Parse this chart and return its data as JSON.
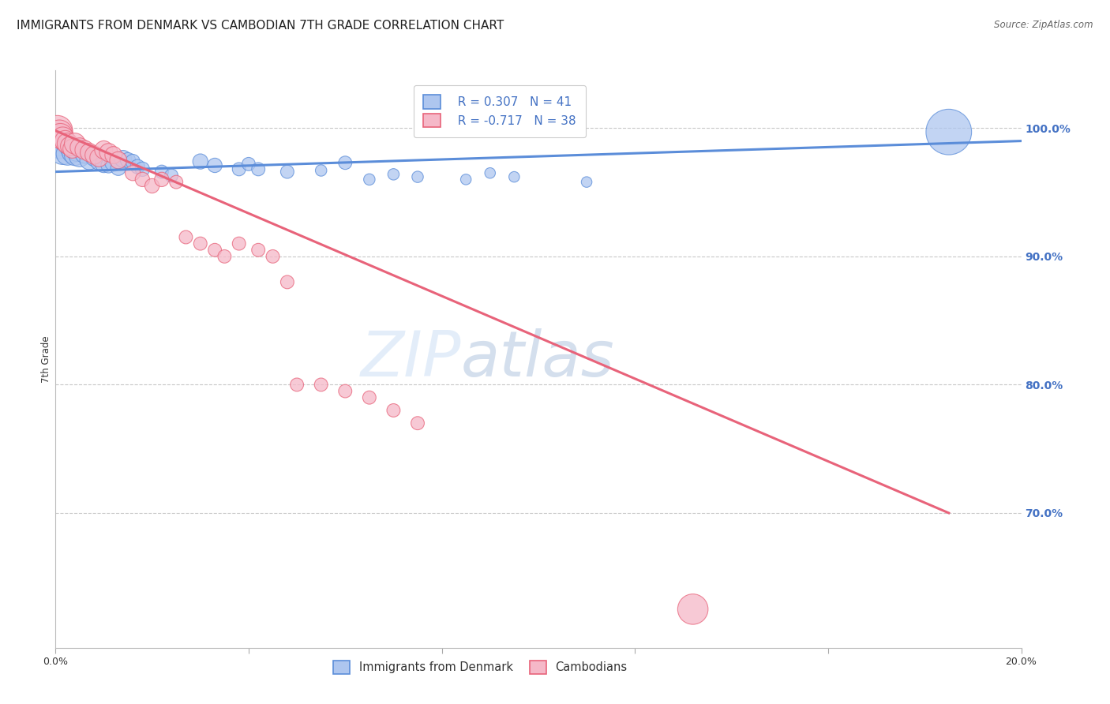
{
  "title": "IMMIGRANTS FROM DENMARK VS CAMBODIAN 7TH GRADE CORRELATION CHART",
  "source": "Source: ZipAtlas.com",
  "ylabel": "7th Grade",
  "yaxis_labels": [
    "100.0%",
    "90.0%",
    "80.0%",
    "70.0%"
  ],
  "yaxis_values": [
    1.0,
    0.9,
    0.8,
    0.7
  ],
  "xlim": [
    0.0,
    0.2
  ],
  "ylim": [
    0.595,
    1.045
  ],
  "legend_r1": "R = 0.307   N = 41",
  "legend_r2": "R = -0.717   N = 38",
  "blue_color": "#5b8dd9",
  "pink_color": "#e8637a",
  "blue_fill": "#aec6ef",
  "pink_fill": "#f5b8c8",
  "watermark_zip": "ZIP",
  "watermark_atlas": "atlas",
  "denmark_points": [
    [
      0.0005,
      0.99
    ],
    [
      0.001,
      0.985
    ],
    [
      0.0015,
      0.982
    ],
    [
      0.002,
      0.988
    ],
    [
      0.0025,
      0.98
    ],
    [
      0.003,
      0.984
    ],
    [
      0.0035,
      0.981
    ],
    [
      0.004,
      0.979
    ],
    [
      0.0045,
      0.983
    ],
    [
      0.005,
      0.978
    ],
    [
      0.006,
      0.98
    ],
    [
      0.007,
      0.975
    ],
    [
      0.008,
      0.977
    ],
    [
      0.009,
      0.974
    ],
    [
      0.01,
      0.972
    ],
    [
      0.011,
      0.971
    ],
    [
      0.012,
      0.973
    ],
    [
      0.013,
      0.969
    ],
    [
      0.014,
      0.976
    ],
    [
      0.015,
      0.975
    ],
    [
      0.016,
      0.974
    ],
    [
      0.017,
      0.97
    ],
    [
      0.018,
      0.968
    ],
    [
      0.022,
      0.966
    ],
    [
      0.024,
      0.963
    ],
    [
      0.03,
      0.974
    ],
    [
      0.033,
      0.971
    ],
    [
      0.038,
      0.968
    ],
    [
      0.04,
      0.972
    ],
    [
      0.042,
      0.968
    ],
    [
      0.048,
      0.966
    ],
    [
      0.055,
      0.967
    ],
    [
      0.06,
      0.973
    ],
    [
      0.065,
      0.96
    ],
    [
      0.07,
      0.964
    ],
    [
      0.075,
      0.962
    ],
    [
      0.085,
      0.96
    ],
    [
      0.09,
      0.965
    ],
    [
      0.095,
      0.962
    ],
    [
      0.11,
      0.958
    ],
    [
      0.185,
      0.997
    ]
  ],
  "denmark_sizes": [
    80,
    60,
    70,
    50,
    60,
    50,
    55,
    55,
    60,
    55,
    50,
    50,
    45,
    45,
    45,
    40,
    45,
    40,
    45,
    40,
    38,
    38,
    38,
    35,
    35,
    40,
    38,
    35,
    35,
    35,
    35,
    30,
    35,
    30,
    30,
    30,
    28,
    28,
    28,
    28,
    120
  ],
  "cambodian_points": [
    [
      0.0004,
      0.998
    ],
    [
      0.0008,
      0.996
    ],
    [
      0.001,
      0.994
    ],
    [
      0.0015,
      0.992
    ],
    [
      0.002,
      0.99
    ],
    [
      0.0025,
      0.988
    ],
    [
      0.003,
      0.986
    ],
    [
      0.0035,
      0.984
    ],
    [
      0.004,
      0.988
    ],
    [
      0.005,
      0.985
    ],
    [
      0.006,
      0.983
    ],
    [
      0.007,
      0.981
    ],
    [
      0.008,
      0.979
    ],
    [
      0.009,
      0.977
    ],
    [
      0.01,
      0.983
    ],
    [
      0.011,
      0.981
    ],
    [
      0.012,
      0.979
    ],
    [
      0.013,
      0.975
    ],
    [
      0.016,
      0.965
    ],
    [
      0.018,
      0.96
    ],
    [
      0.02,
      0.955
    ],
    [
      0.022,
      0.96
    ],
    [
      0.025,
      0.958
    ],
    [
      0.027,
      0.915
    ],
    [
      0.03,
      0.91
    ],
    [
      0.033,
      0.905
    ],
    [
      0.035,
      0.9
    ],
    [
      0.038,
      0.91
    ],
    [
      0.042,
      0.905
    ],
    [
      0.045,
      0.9
    ],
    [
      0.048,
      0.88
    ],
    [
      0.05,
      0.8
    ],
    [
      0.055,
      0.8
    ],
    [
      0.06,
      0.795
    ],
    [
      0.065,
      0.79
    ],
    [
      0.07,
      0.78
    ],
    [
      0.075,
      0.77
    ],
    [
      0.132,
      0.625
    ]
  ],
  "cambodian_sizes": [
    80,
    70,
    65,
    60,
    55,
    55,
    50,
    50,
    55,
    50,
    50,
    48,
    48,
    48,
    48,
    48,
    45,
    45,
    40,
    38,
    38,
    38,
    35,
    35,
    35,
    35,
    35,
    35,
    35,
    35,
    35,
    35,
    35,
    35,
    35,
    35,
    35,
    80
  ],
  "blue_trend_x": [
    0.0,
    0.2
  ],
  "blue_trend_y": [
    0.966,
    0.99
  ],
  "pink_trend_x": [
    0.0,
    0.185
  ],
  "pink_trend_y": [
    0.998,
    0.7
  ],
  "background_color": "#ffffff",
  "grid_color": "#c8c8c8",
  "title_fontsize": 11,
  "axis_label_fontsize": 8.5,
  "tick_fontsize": 9,
  "right_axis_color": "#4472c4"
}
